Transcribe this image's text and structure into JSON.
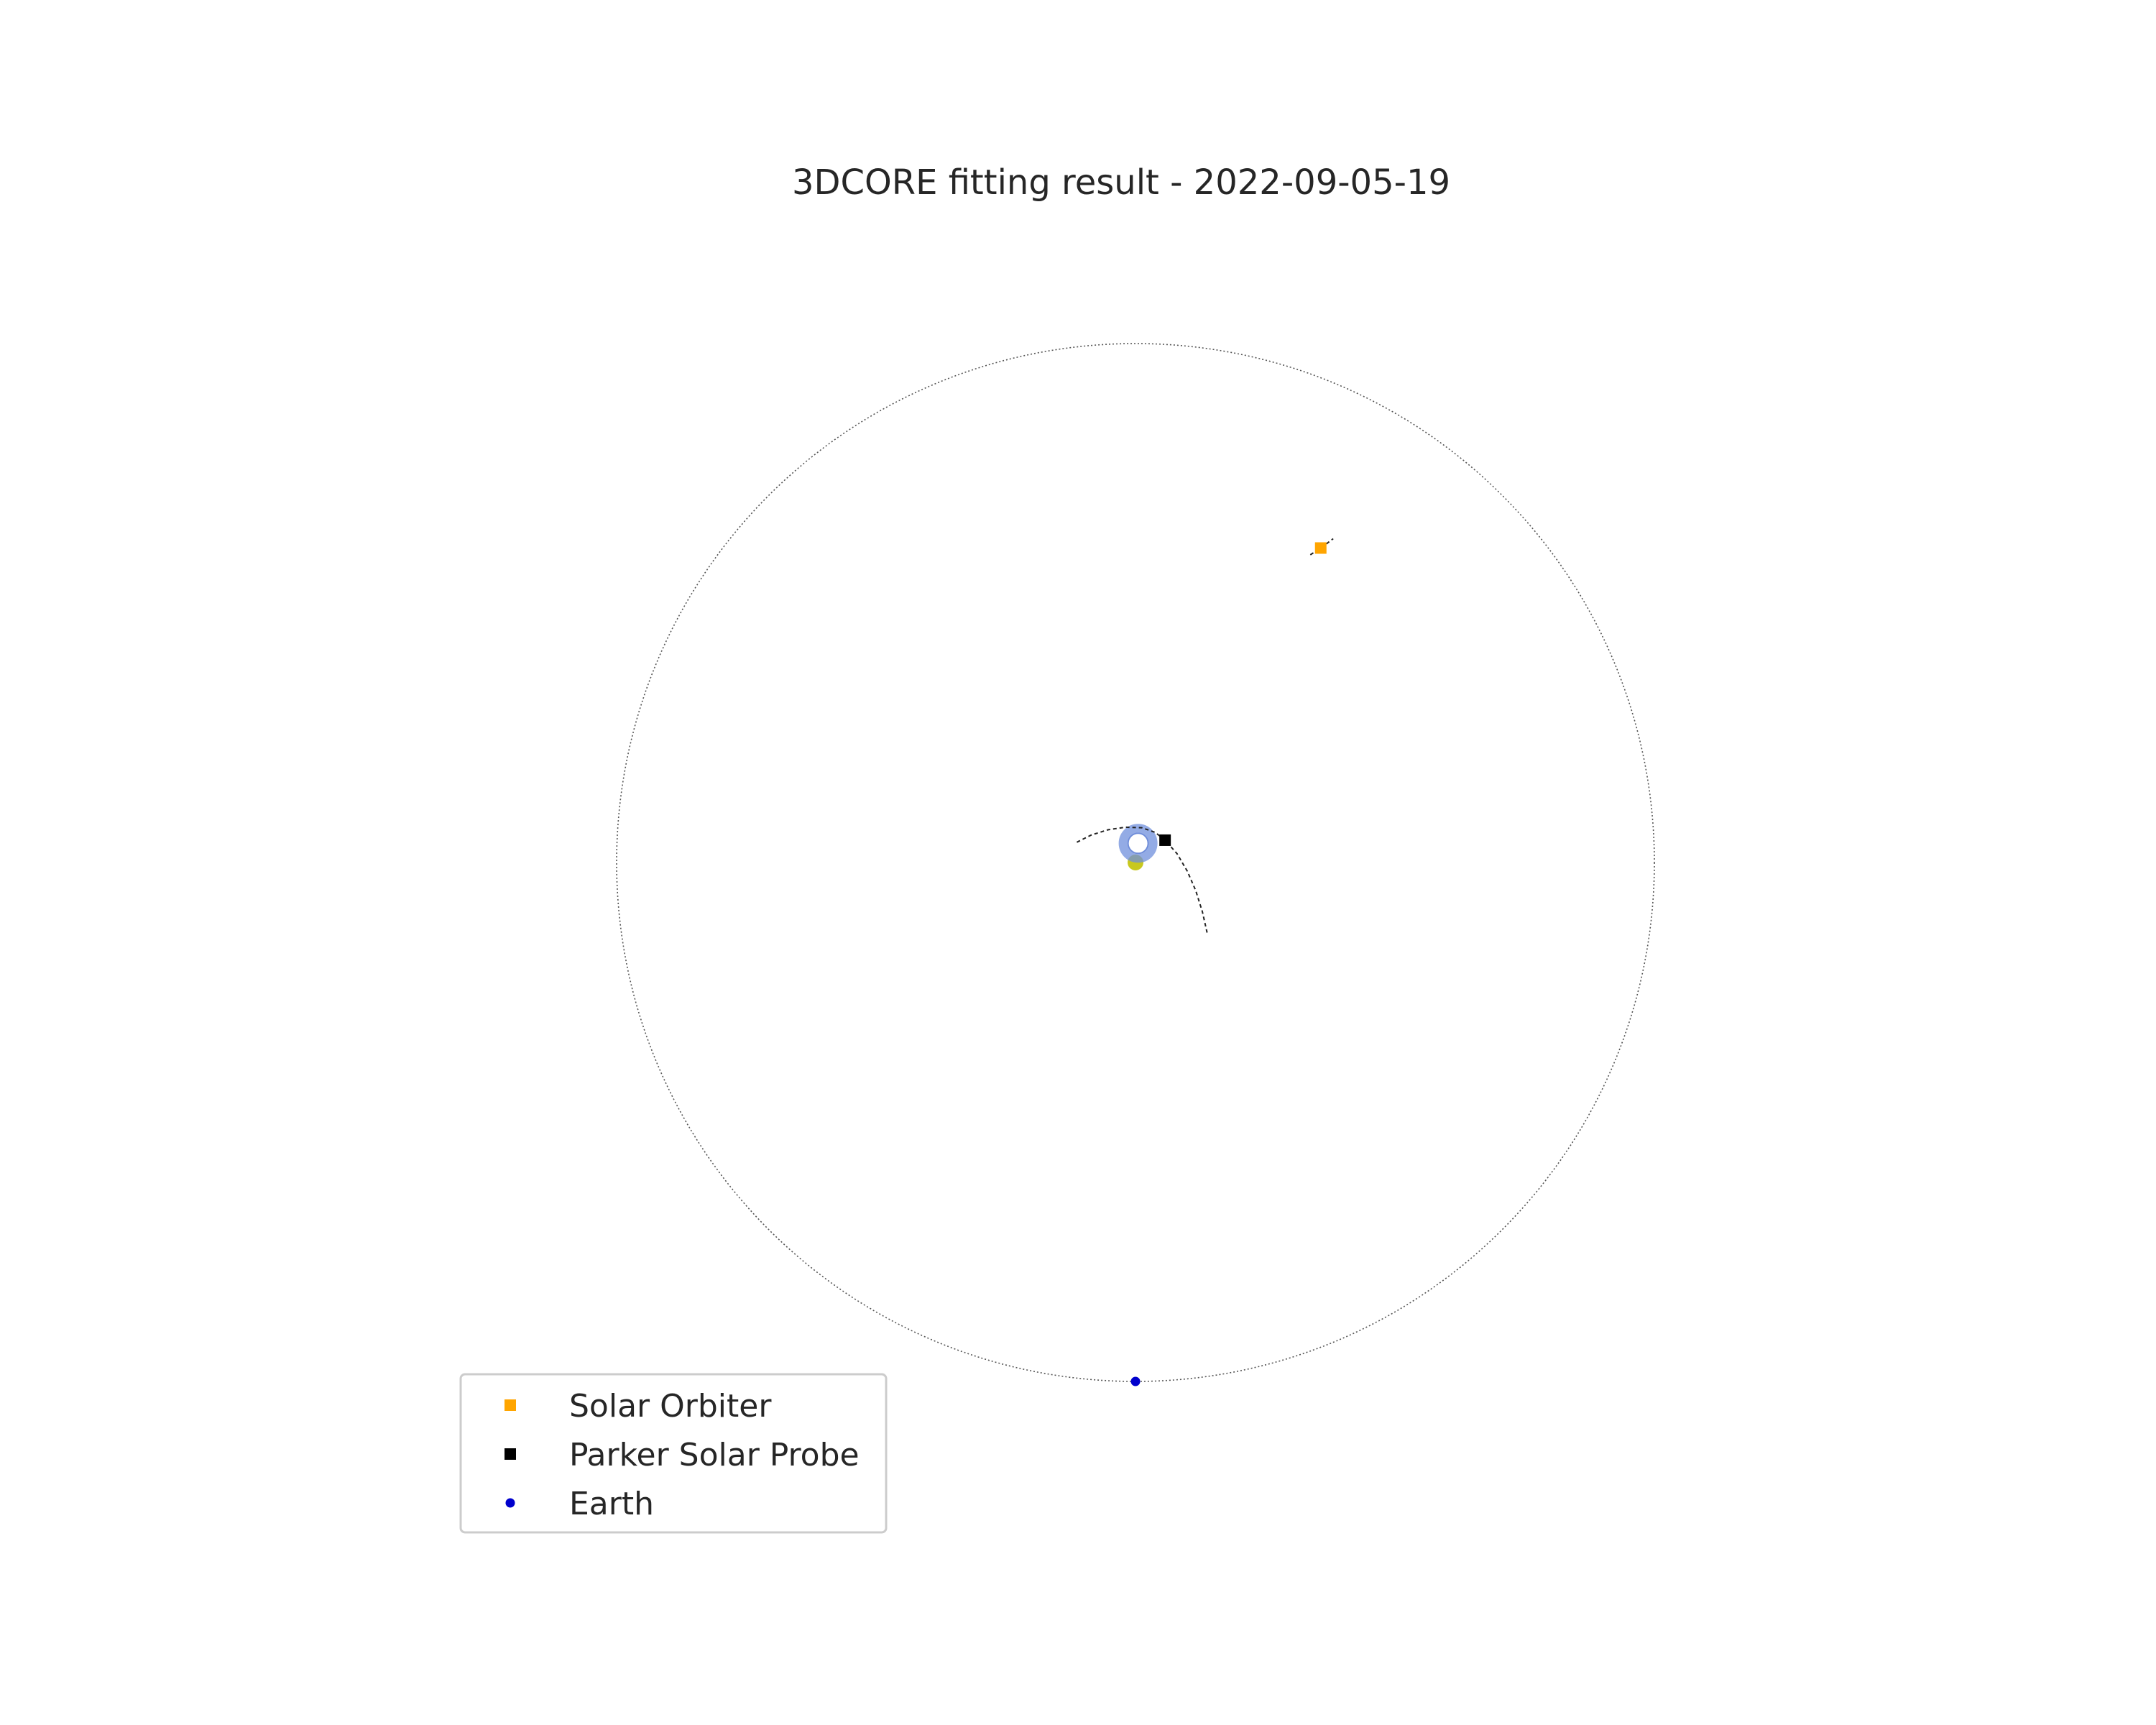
{
  "chart_data": {
    "type": "scatter",
    "title": "3DCORE fitting result - 2022-09-05-19",
    "xlabel": "",
    "ylabel": "",
    "xlim": [
      -1.1,
      1.1
    ],
    "ylim": [
      -1.1,
      1.1
    ],
    "grid": false,
    "legend_position": "lower-left",
    "reference_orbit_radius_au": 1.0,
    "series": [
      {
        "name": "Solar Orbiter",
        "marker": "square",
        "color": "#ffa500",
        "x": [
          0.357
        ],
        "y": [
          0.606
        ],
        "trajectory": {
          "x": [
            0.337,
            0.357,
            0.381
          ],
          "y": [
            0.593,
            0.606,
            0.624
          ]
        }
      },
      {
        "name": "Parker Solar Probe",
        "marker": "square",
        "color": "#000000",
        "x": [
          0.057
        ],
        "y": [
          0.043
        ],
        "trajectory": {
          "x": [
            -0.113,
            -0.085,
            -0.053,
            -0.02,
            0.012,
            0.038,
            0.057,
            0.08,
            0.1,
            0.116,
            0.129,
            0.138
          ],
          "y": [
            0.039,
            0.053,
            0.063,
            0.068,
            0.067,
            0.058,
            0.043,
            0.017,
            -0.017,
            -0.054,
            -0.095,
            -0.135
          ]
        }
      },
      {
        "name": "Earth",
        "marker": "circle",
        "color": "#0000cd",
        "x": [
          0.0
        ],
        "y": [
          -1.0
        ]
      }
    ],
    "sun": {
      "x": 0.0,
      "y": 0.0,
      "color": "#c8c81e"
    },
    "flux_rope": {
      "x": 0.005,
      "y": 0.037,
      "outer_radius_au": 0.036,
      "color": "#6f8fdc"
    }
  }
}
